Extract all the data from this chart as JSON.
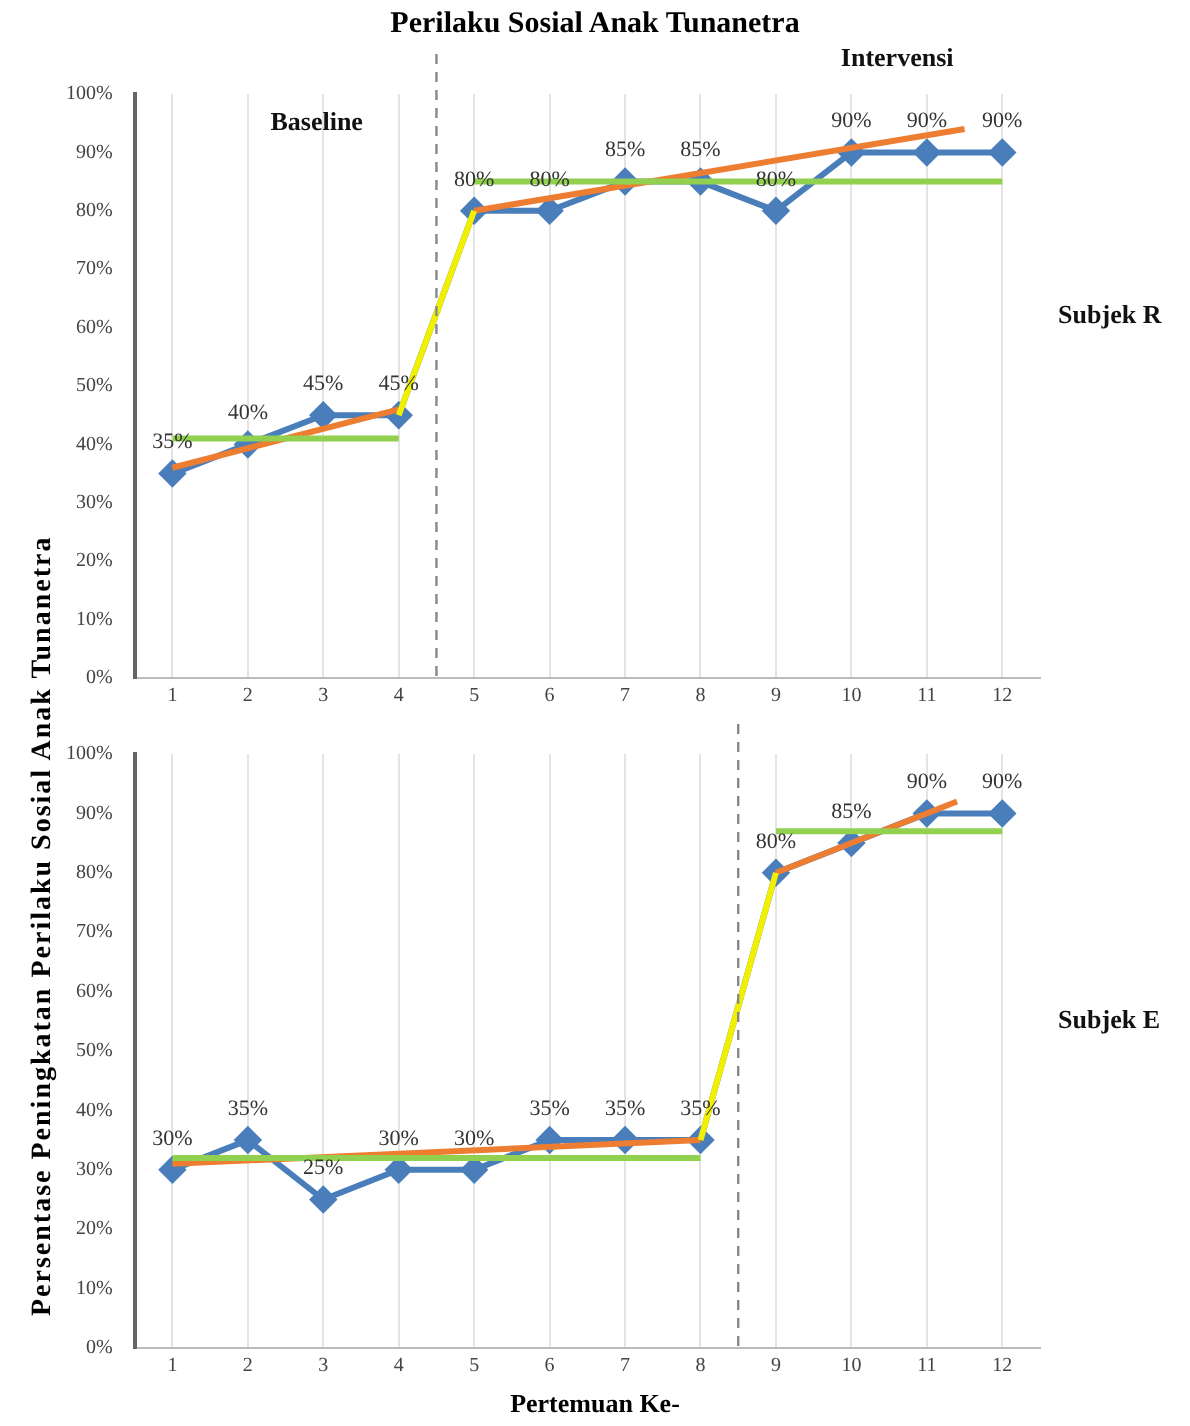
{
  "chart_data": [
    {
      "type": "line",
      "title": "Perilaku Sosial Anak Tunanetra",
      "ylabel": "Persentase Peningkatan Perilaku Sosial Anak Tunanetra",
      "x": [
        1,
        2,
        3,
        4,
        5,
        6,
        7,
        8,
        9,
        10,
        11,
        12
      ],
      "series": [
        {
          "color": "#4a7ebb",
          "marker": "diamond",
          "values": [
            35,
            40,
            45,
            45,
            80,
            80,
            85,
            85,
            80,
            90,
            90,
            90
          ],
          "value_labels": [
            "35%",
            "40%",
            "45%",
            "45%",
            "80%",
            "80%",
            "85%",
            "85%",
            "80%",
            "90%",
            "90%",
            "90%"
          ]
        },
        {
          "color": "#ed7d31",
          "marker": "none",
          "x": [
            1,
            4
          ],
          "values": [
            36,
            46
          ]
        },
        {
          "color": "#ed7d31",
          "marker": "none",
          "x": [
            5,
            11.5
          ],
          "values": [
            80,
            94
          ]
        },
        {
          "color": "#92d050",
          "marker": "none",
          "x": [
            1,
            4
          ],
          "values": [
            41,
            41
          ]
        },
        {
          "color": "#92d050",
          "marker": "none",
          "x": [
            5,
            12
          ],
          "values": [
            85,
            85
          ]
        },
        {
          "color": "#f0f000",
          "marker": "none",
          "x": [
            4,
            5
          ],
          "values": [
            45,
            80
          ]
        }
      ],
      "xlim": [
        0.5,
        12.5
      ],
      "xticks": [
        1,
        2,
        3,
        4,
        5,
        6,
        7,
        8,
        9,
        10,
        11,
        12
      ],
      "ylim": [
        0,
        100
      ],
      "yticks": [
        {
          "value": 0,
          "label": "0%"
        },
        {
          "value": 10,
          "label": "10%"
        },
        {
          "value": 20,
          "label": "20%"
        },
        {
          "value": 30,
          "label": "30%"
        },
        {
          "value": 40,
          "label": "40%"
        },
        {
          "value": 50,
          "label": "50%"
        },
        {
          "value": 60,
          "label": "60%"
        },
        {
          "value": 70,
          "label": "70%"
        },
        {
          "value": 80,
          "label": "80%"
        },
        {
          "value": 90,
          "label": "90%"
        },
        {
          "value": 100,
          "label": "100%"
        }
      ],
      "ref_lines": [
        {
          "axis": "x",
          "value": 4.5,
          "color": "#888888",
          "line_style": "dashed"
        }
      ],
      "grid": "x",
      "legend": false,
      "annotations": [
        "Baseline",
        "Intervensi",
        "Subjek R"
      ]
    },
    {
      "type": "line",
      "xlabel": "Pertemuan Ke-",
      "x": [
        1,
        2,
        3,
        4,
        5,
        6,
        7,
        8,
        9,
        10,
        11,
        12
      ],
      "series": [
        {
          "color": "#4a7ebb",
          "marker": "diamond",
          "values": [
            30,
            35,
            25,
            30,
            30,
            35,
            35,
            35,
            80,
            85,
            90,
            90
          ],
          "value_labels": [
            "30%",
            "35%",
            "25%",
            "30%",
            "30%",
            "35%",
            "35%",
            "35%",
            "80%",
            "85%",
            "90%",
            "90%"
          ]
        },
        {
          "color": "#ed7d31",
          "marker": "none",
          "x": [
            1,
            8
          ],
          "values": [
            31,
            35
          ]
        },
        {
          "color": "#ed7d31",
          "marker": "none",
          "x": [
            9,
            11.4
          ],
          "values": [
            80,
            92
          ]
        },
        {
          "color": "#92d050",
          "marker": "none",
          "x": [
            1,
            8
          ],
          "values": [
            32,
            32
          ]
        },
        {
          "color": "#92d050",
          "marker": "none",
          "x": [
            9,
            12
          ],
          "values": [
            87,
            87
          ]
        },
        {
          "color": "#f0f000",
          "marker": "none",
          "x": [
            8,
            9
          ],
          "values": [
            35,
            80
          ]
        }
      ],
      "xlim": [
        0.5,
        12.5
      ],
      "xticks": [
        1,
        2,
        3,
        4,
        5,
        6,
        7,
        8,
        9,
        10,
        11,
        12
      ],
      "ylim": [
        0,
        100
      ],
      "yticks": [
        {
          "value": 0,
          "label": "0%"
        },
        {
          "value": 10,
          "label": "10%"
        },
        {
          "value": 20,
          "label": "20%"
        },
        {
          "value": 30,
          "label": "30%"
        },
        {
          "value": 40,
          "label": "40%"
        },
        {
          "value": 50,
          "label": "50%"
        },
        {
          "value": 60,
          "label": "60%"
        },
        {
          "value": 70,
          "label": "70%"
        },
        {
          "value": 80,
          "label": "80%"
        },
        {
          "value": 90,
          "label": "90%"
        },
        {
          "value": 100,
          "label": "100%"
        }
      ],
      "ref_lines": [
        {
          "axis": "x",
          "value": 8.5,
          "color": "#888888",
          "line_style": "dashed"
        }
      ],
      "grid": "x",
      "legend": false,
      "annotations": [
        "Subjek E"
      ]
    }
  ]
}
